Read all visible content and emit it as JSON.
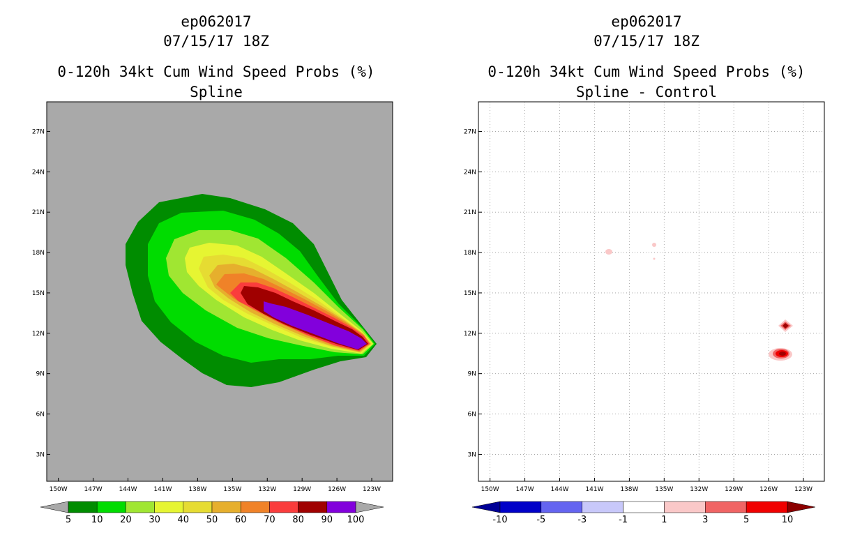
{
  "chart_data": [
    {
      "type": "heatmap",
      "storm_id": "ep062017",
      "datetime": "07/15/17 18Z",
      "title": "0-120h 34kt Cum Wind Speed Probs (%)",
      "subtitle": "Spline",
      "x_ticks": [
        "150W",
        "147W",
        "144W",
        "141W",
        "138W",
        "135W",
        "132W",
        "129W",
        "126W",
        "123W"
      ],
      "y_ticks": [
        "27N",
        "24N",
        "21N",
        "18N",
        "15N",
        "12N",
        "9N",
        "6N",
        "3N"
      ],
      "lon_range": [
        -151,
        -121.2
      ],
      "lat_range": [
        1,
        29.2
      ],
      "background": "#a9a9a9",
      "colorbar": {
        "labels": [
          "5",
          "10",
          "20",
          "30",
          "40",
          "50",
          "60",
          "70",
          "80",
          "90",
          "100"
        ],
        "colors": [
          "#008c00",
          "#00dc00",
          "#a0e632",
          "#e6f532",
          "#e6dc32",
          "#e6af2d",
          "#f08228",
          "#fa3c3c",
          "#a00000",
          "#8200dc"
        ],
        "under_color": "#a9a9a9",
        "over_color": "#a9a9a9"
      }
    },
    {
      "type": "heatmap",
      "storm_id": "ep062017",
      "datetime": "07/15/17 18Z",
      "title": "0-120h 34kt Cum Wind Speed Probs (%)",
      "subtitle": "Spline - Control",
      "x_ticks": [
        "150W",
        "147W",
        "144W",
        "141W",
        "138W",
        "135W",
        "132W",
        "129W",
        "126W",
        "123W"
      ],
      "y_ticks": [
        "27N",
        "24N",
        "21N",
        "18N",
        "15N",
        "12N",
        "9N",
        "6N",
        "3N"
      ],
      "lon_range": [
        -151,
        -121.2
      ],
      "lat_range": [
        1,
        29.2
      ],
      "background": "#ffffff",
      "gridlines": true,
      "colorbar": {
        "labels": [
          "-10",
          "-5",
          "-3",
          "-1",
          "1",
          "3",
          "5",
          "10"
        ],
        "colors": [
          "#0000c8",
          "#6464f0",
          "#c8c8fa",
          "#ffffff",
          "#fac8c8",
          "#f06464",
          "#f00000"
        ],
        "under_color": "#000096",
        "over_color": "#8c0000"
      }
    }
  ]
}
